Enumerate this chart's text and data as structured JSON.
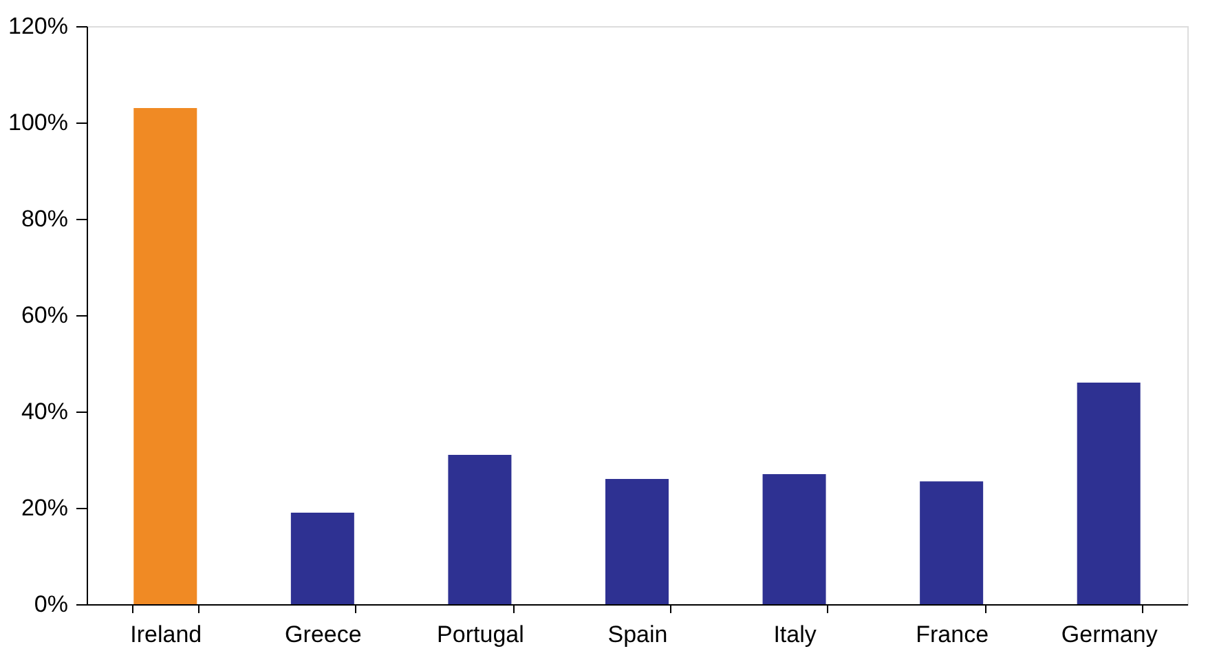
{
  "chart_data": {
    "type": "bar",
    "categories": [
      "Ireland",
      "Greece",
      "Portugal",
      "Spain",
      "Italy",
      "France",
      "Germany"
    ],
    "values": [
      103,
      19,
      31,
      26,
      27,
      25.5,
      46
    ],
    "colors": [
      "#f08a24",
      "#2e3192",
      "#2e3192",
      "#2e3192",
      "#2e3192",
      "#2e3192",
      "#2e3192"
    ],
    "ylim": [
      0,
      120
    ],
    "yticks": [
      {
        "value": 0,
        "label": "0%"
      },
      {
        "value": 20,
        "label": "20%"
      },
      {
        "value": 40,
        "label": "40%"
      },
      {
        "value": 60,
        "label": "60%"
      },
      {
        "value": 80,
        "label": "80%"
      },
      {
        "value": 100,
        "label": "100%"
      },
      {
        "value": 120,
        "label": "120%"
      }
    ],
    "grid": false
  }
}
